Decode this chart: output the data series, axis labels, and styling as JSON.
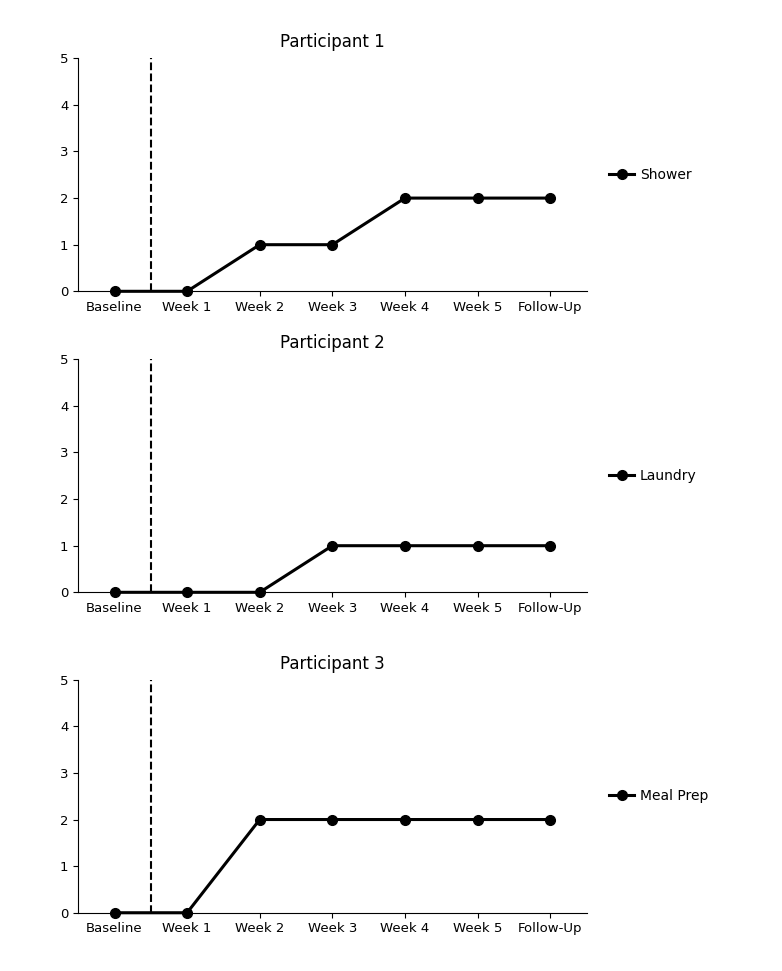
{
  "participants": [
    "Participant 1",
    "Participant 2",
    "Participant 3"
  ],
  "x_labels": [
    "Baseline",
    "Week 1",
    "Week 2",
    "Week 3",
    "Week 4",
    "Week 5",
    "Follow-Up"
  ],
  "x_positions": [
    0,
    1,
    2,
    3,
    4,
    5,
    6
  ],
  "dashed_line_x": 0.5,
  "series": [
    {
      "label": "Shower",
      "values": [
        0,
        0,
        1,
        1,
        2,
        2,
        2
      ]
    },
    {
      "label": "Laundry",
      "values": [
        0,
        0,
        0,
        1,
        1,
        1,
        1
      ]
    },
    {
      "label": "Meal Prep",
      "values": [
        0,
        0,
        2,
        2,
        2,
        2,
        2
      ]
    }
  ],
  "ylim": [
    0,
    5
  ],
  "yticks": [
    0,
    1,
    2,
    3,
    4,
    5
  ],
  "line_color": "#000000",
  "line_width": 2.2,
  "marker": "o",
  "marker_size": 7,
  "dashed_color": "#000000",
  "background_color": "#ffffff",
  "title_fontsize": 12,
  "tick_fontsize": 9.5,
  "legend_fontsize": 10
}
